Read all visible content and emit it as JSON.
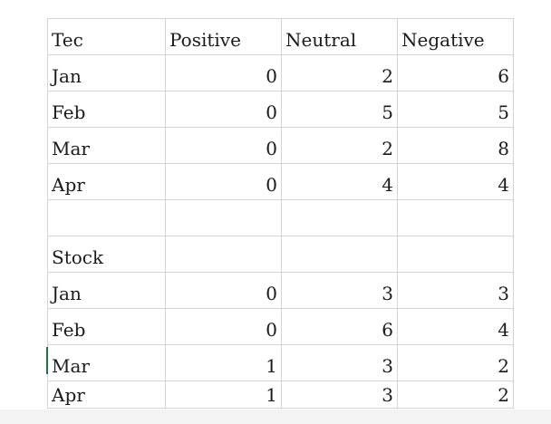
{
  "sheet": {
    "tec": {
      "header": [
        "Tec",
        "Positive",
        "Neutral",
        "Negative"
      ],
      "rows": [
        [
          "Jan",
          "0",
          "2",
          "6"
        ],
        [
          "Feb",
          "0",
          "5",
          "5"
        ],
        [
          "Mar",
          "0",
          "2",
          "8"
        ],
        [
          "Apr",
          "0",
          "4",
          "4"
        ]
      ]
    },
    "stock": {
      "label": "Stock",
      "rows": [
        [
          "Jan",
          "0",
          "3",
          "3"
        ],
        [
          "Feb",
          "0",
          "6",
          "4"
        ],
        [
          "Mar",
          "1",
          "3",
          "2"
        ],
        [
          "Apr",
          "1",
          "3",
          "2"
        ]
      ]
    }
  }
}
